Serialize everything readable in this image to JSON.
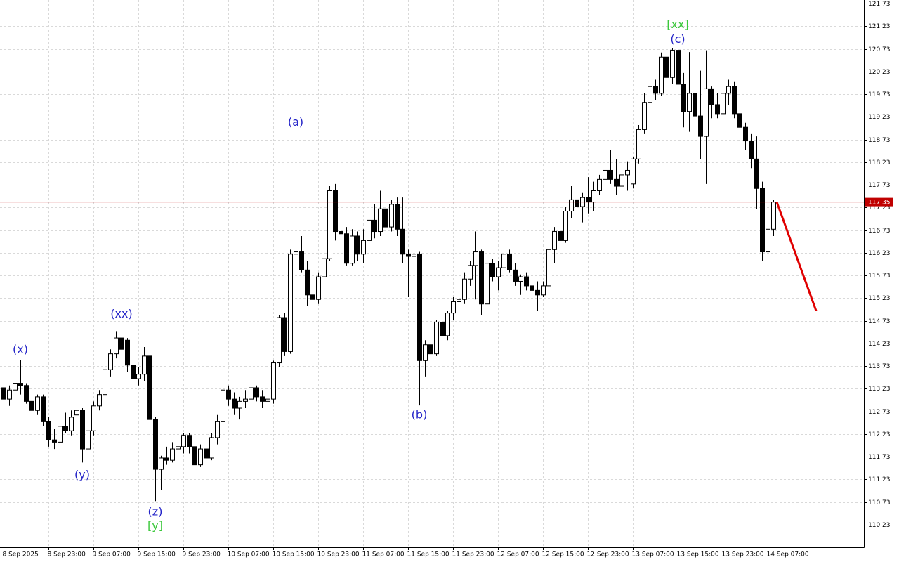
{
  "chart_data": {
    "type": "candlestick",
    "bull_color": "#ffffff",
    "bear_color": "#000000",
    "outline_color": "#000000",
    "grid": true,
    "ylim": [
      109.73,
      121.81
    ],
    "yticks": [
      121.73,
      121.23,
      120.73,
      120.23,
      119.73,
      119.23,
      118.73,
      118.23,
      117.73,
      117.23,
      116.73,
      116.23,
      115.73,
      115.23,
      114.73,
      114.23,
      113.73,
      113.23,
      112.73,
      112.23,
      111.73,
      111.23,
      110.73,
      110.23
    ],
    "categories": [
      "8 Sep 2025",
      null,
      null,
      null,
      null,
      null,
      null,
      null,
      "8 Sep 23:00",
      null,
      null,
      null,
      null,
      null,
      null,
      null,
      "9 Sep 07:00",
      null,
      null,
      null,
      null,
      null,
      null,
      null,
      "9 Sep 15:00",
      null,
      null,
      null,
      null,
      null,
      null,
      null,
      "9 Sep 23:00",
      null,
      null,
      null,
      null,
      null,
      null,
      null,
      "10 Sep 07:00",
      null,
      null,
      null,
      null,
      null,
      null,
      null,
      "10 Sep 15:00",
      null,
      null,
      null,
      null,
      null,
      null,
      null,
      "10 Sep 23:00",
      null,
      null,
      null,
      null,
      null,
      null,
      null,
      "11 Sep 07:00",
      null,
      null,
      null,
      null,
      null,
      null,
      null,
      "11 Sep 15:00",
      null,
      null,
      null,
      null,
      null,
      null,
      null,
      "11 Sep 23:00",
      null,
      null,
      null,
      null,
      null,
      null,
      null,
      "12 Sep 07:00",
      null,
      null,
      null,
      null,
      null,
      null,
      null,
      "12 Sep 15:00",
      null,
      null,
      null,
      null,
      null,
      null,
      null,
      "12 Sep 23:00",
      null,
      null,
      null,
      null,
      null,
      null,
      null,
      "13 Sep 07:00",
      null,
      null,
      null,
      null,
      null,
      null,
      null,
      "13 Sep 15:00",
      null,
      null,
      null,
      null,
      null,
      null,
      null,
      "13 Sep 23:00",
      null,
      null,
      null,
      null,
      null,
      null,
      null,
      "14 Sep 07:00",
      null
    ],
    "candles": [
      [
        113.25,
        113.4,
        112.85,
        113.0
      ],
      [
        113.0,
        113.3,
        112.85,
        113.2
      ],
      [
        113.2,
        113.4,
        113.0,
        113.35
      ],
      [
        113.35,
        113.87,
        113.1,
        113.3
      ],
      [
        113.3,
        113.35,
        112.9,
        112.95
      ],
      [
        112.95,
        113.1,
        112.6,
        112.75
      ],
      [
        112.75,
        113.1,
        112.65,
        113.05
      ],
      [
        113.05,
        113.1,
        112.4,
        112.5
      ],
      [
        112.5,
        112.6,
        111.95,
        112.1
      ],
      [
        112.1,
        112.35,
        111.9,
        112.05
      ],
      [
        112.05,
        112.5,
        112.0,
        112.4
      ],
      [
        112.4,
        112.7,
        112.25,
        112.3
      ],
      [
        112.3,
        112.75,
        112.2,
        112.6
      ],
      [
        112.65,
        113.85,
        112.55,
        112.75
      ],
      [
        112.75,
        112.8,
        111.6,
        111.9
      ],
      [
        111.9,
        112.4,
        111.75,
        112.3
      ],
      [
        112.3,
        112.95,
        112.2,
        112.85
      ],
      [
        112.85,
        113.2,
        112.75,
        113.1
      ],
      [
        113.1,
        113.75,
        113.0,
        113.65
      ],
      [
        113.65,
        114.1,
        113.5,
        114.0
      ],
      [
        114.0,
        114.5,
        113.9,
        114.35
      ],
      [
        114.35,
        114.65,
        114.0,
        114.1
      ],
      [
        114.3,
        114.35,
        113.6,
        113.75
      ],
      [
        113.75,
        113.9,
        113.3,
        113.45
      ],
      [
        113.45,
        113.7,
        113.3,
        113.55
      ],
      [
        113.55,
        114.15,
        113.4,
        113.95
      ],
      [
        113.95,
        114.1,
        112.5,
        112.55
      ],
      [
        112.55,
        112.6,
        110.75,
        111.45
      ],
      [
        111.45,
        111.75,
        111.0,
        111.7
      ],
      [
        111.7,
        111.95,
        111.55,
        111.65
      ],
      [
        111.65,
        112.05,
        111.6,
        111.9
      ],
      [
        111.9,
        112.1,
        111.75,
        111.95
      ],
      [
        111.95,
        112.25,
        111.8,
        112.2
      ],
      [
        112.2,
        112.25,
        111.8,
        111.95
      ],
      [
        111.95,
        112.05,
        111.5,
        111.55
      ],
      [
        111.55,
        112.0,
        111.5,
        111.9
      ],
      [
        111.9,
        112.1,
        111.6,
        111.7
      ],
      [
        111.7,
        112.25,
        111.65,
        112.15
      ],
      [
        112.15,
        112.65,
        112.0,
        112.5
      ],
      [
        112.5,
        113.3,
        112.4,
        113.2
      ],
      [
        113.2,
        113.3,
        112.85,
        113.0
      ],
      [
        113.0,
        113.15,
        112.65,
        112.8
      ],
      [
        112.8,
        113.05,
        112.55,
        112.95
      ],
      [
        112.95,
        113.2,
        112.8,
        113.0
      ],
      [
        113.0,
        113.35,
        112.9,
        113.25
      ],
      [
        113.25,
        113.3,
        112.95,
        113.05
      ],
      [
        113.05,
        113.2,
        112.8,
        112.95
      ],
      [
        112.95,
        113.2,
        112.8,
        113.0
      ],
      [
        113.0,
        113.85,
        112.9,
        113.8
      ],
      [
        113.8,
        114.85,
        113.7,
        114.8
      ],
      [
        114.8,
        114.9,
        113.95,
        114.05
      ],
      [
        114.05,
        116.3,
        114.0,
        116.2
      ],
      [
        116.2,
        118.92,
        114.15,
        116.25
      ],
      [
        116.25,
        116.6,
        115.8,
        115.85
      ],
      [
        115.85,
        116.05,
        115.05,
        115.3
      ],
      [
        115.3,
        115.4,
        115.1,
        115.2
      ],
      [
        115.2,
        115.8,
        115.1,
        115.7
      ],
      [
        115.7,
        116.2,
        115.6,
        116.1
      ],
      [
        116.1,
        117.7,
        116.05,
        117.6
      ],
      [
        117.6,
        117.75,
        116.5,
        116.7
      ],
      [
        116.7,
        117.1,
        116.3,
        116.65
      ],
      [
        116.65,
        116.8,
        115.95,
        116.0
      ],
      [
        116.0,
        116.75,
        115.95,
        116.6
      ],
      [
        116.6,
        116.7,
        116.05,
        116.2
      ],
      [
        116.2,
        116.75,
        116.0,
        116.5
      ],
      [
        116.5,
        117.1,
        116.4,
        116.95
      ],
      [
        116.95,
        117.3,
        116.55,
        116.7
      ],
      [
        116.7,
        117.6,
        116.6,
        117.2
      ],
      [
        117.2,
        117.25,
        116.55,
        116.8
      ],
      [
        116.8,
        117.4,
        116.7,
        117.3
      ],
      [
        117.3,
        117.45,
        116.6,
        116.75
      ],
      [
        116.75,
        117.45,
        116.0,
        116.2
      ],
      [
        116.2,
        116.3,
        115.25,
        116.15
      ],
      [
        116.15,
        116.25,
        115.9,
        116.2
      ],
      [
        116.2,
        116.25,
        112.86,
        113.85
      ],
      [
        113.85,
        114.3,
        113.5,
        114.2
      ],
      [
        114.2,
        114.35,
        113.85,
        114.0
      ],
      [
        114.0,
        114.75,
        113.95,
        114.7
      ],
      [
        114.7,
        114.8,
        114.25,
        114.4
      ],
      [
        114.4,
        114.95,
        114.3,
        114.9
      ],
      [
        114.9,
        115.25,
        114.75,
        115.15
      ],
      [
        115.15,
        115.3,
        114.9,
        115.2
      ],
      [
        115.2,
        115.8,
        115.1,
        115.65
      ],
      [
        115.65,
        116.05,
        115.5,
        115.95
      ],
      [
        115.95,
        116.7,
        115.2,
        116.25
      ],
      [
        116.25,
        116.3,
        114.85,
        115.1
      ],
      [
        115.1,
        116.2,
        115.05,
        116.0
      ],
      [
        116.0,
        116.1,
        115.6,
        115.7
      ],
      [
        115.7,
        116.05,
        115.4,
        115.9
      ],
      [
        115.9,
        116.25,
        115.75,
        116.2
      ],
      [
        116.2,
        116.3,
        115.8,
        115.85
      ],
      [
        115.85,
        116.0,
        115.5,
        115.6
      ],
      [
        115.6,
        115.75,
        115.3,
        115.7
      ],
      [
        115.7,
        115.8,
        115.4,
        115.5
      ],
      [
        115.5,
        115.9,
        115.35,
        115.4
      ],
      [
        115.4,
        115.6,
        114.95,
        115.3
      ],
      [
        115.3,
        115.6,
        115.25,
        115.5
      ],
      [
        115.5,
        116.35,
        115.45,
        116.3
      ],
      [
        116.3,
        116.8,
        116.0,
        116.7
      ],
      [
        116.7,
        116.85,
        116.3,
        116.5
      ],
      [
        116.5,
        117.25,
        116.45,
        117.15
      ],
      [
        117.15,
        117.7,
        117.0,
        117.4
      ],
      [
        117.4,
        117.55,
        117.1,
        117.25
      ],
      [
        117.25,
        117.55,
        116.9,
        117.45
      ],
      [
        117.45,
        117.9,
        117.1,
        117.35
      ],
      [
        117.35,
        117.8,
        117.15,
        117.6
      ],
      [
        117.6,
        117.95,
        117.5,
        117.85
      ],
      [
        117.85,
        118.2,
        117.7,
        118.05
      ],
      [
        118.05,
        118.5,
        117.75,
        117.85
      ],
      [
        117.85,
        118.3,
        117.5,
        117.7
      ],
      [
        117.7,
        118.2,
        117.65,
        117.95
      ],
      [
        117.95,
        118.25,
        117.6,
        118.05
      ],
      [
        117.75,
        118.35,
        117.65,
        118.3
      ],
      [
        118.3,
        119.05,
        118.2,
        118.95
      ],
      [
        118.95,
        119.75,
        118.85,
        119.55
      ],
      [
        119.55,
        120.0,
        119.3,
        119.9
      ],
      [
        119.9,
        120.05,
        119.6,
        119.75
      ],
      [
        119.75,
        120.65,
        119.7,
        120.55
      ],
      [
        120.55,
        120.6,
        120.0,
        120.1
      ],
      [
        120.1,
        120.75,
        119.95,
        120.7
      ],
      [
        120.7,
        120.72,
        119.5,
        119.95
      ],
      [
        119.95,
        120.2,
        119.0,
        119.35
      ],
      [
        119.35,
        120.66,
        118.9,
        119.75
      ],
      [
        119.75,
        120.05,
        119.1,
        119.25
      ],
      [
        119.25,
        120.25,
        118.3,
        118.8
      ],
      [
        118.8,
        120.7,
        117.75,
        119.85
      ],
      [
        119.85,
        119.9,
        119.2,
        119.5
      ],
      [
        119.5,
        119.75,
        119.2,
        119.3
      ],
      [
        119.3,
        119.8,
        119.25,
        119.75
      ],
      [
        119.75,
        120.05,
        119.5,
        119.9
      ],
      [
        119.9,
        120.0,
        119.2,
        119.3
      ],
      [
        119.3,
        119.4,
        118.9,
        119.0
      ],
      [
        119.0,
        119.1,
        118.5,
        118.7
      ],
      [
        118.7,
        118.85,
        118.1,
        118.3
      ],
      [
        118.3,
        118.8,
        117.2,
        117.65
      ],
      [
        117.65,
        117.8,
        116.05,
        116.25
      ],
      [
        116.25,
        116.95,
        115.95,
        116.75
      ],
      [
        116.75,
        117.4,
        116.6,
        117.35
      ]
    ],
    "last_price": 117.35,
    "last_price_color": "#c00000",
    "forecast": {
      "color": "#e00000",
      "values": [
        117.35,
        114.95
      ]
    },
    "annotations": [
      {
        "text": "(x)",
        "color": "#2424c8"
      },
      {
        "text": "(y)",
        "color": "#2424c8"
      },
      {
        "text": "(xx)",
        "color": "#2424c8"
      },
      {
        "text": "(z)",
        "color": "#2424c8"
      },
      {
        "text": "[y]",
        "color": "#3cc83c"
      },
      {
        "text": "(a)",
        "color": "#2424c8"
      },
      {
        "text": "(b)",
        "color": "#2424c8"
      },
      {
        "text": "(c)",
        "color": "#2424c8"
      },
      {
        "text": "[xx]",
        "color": "#3cc83c"
      }
    ]
  }
}
